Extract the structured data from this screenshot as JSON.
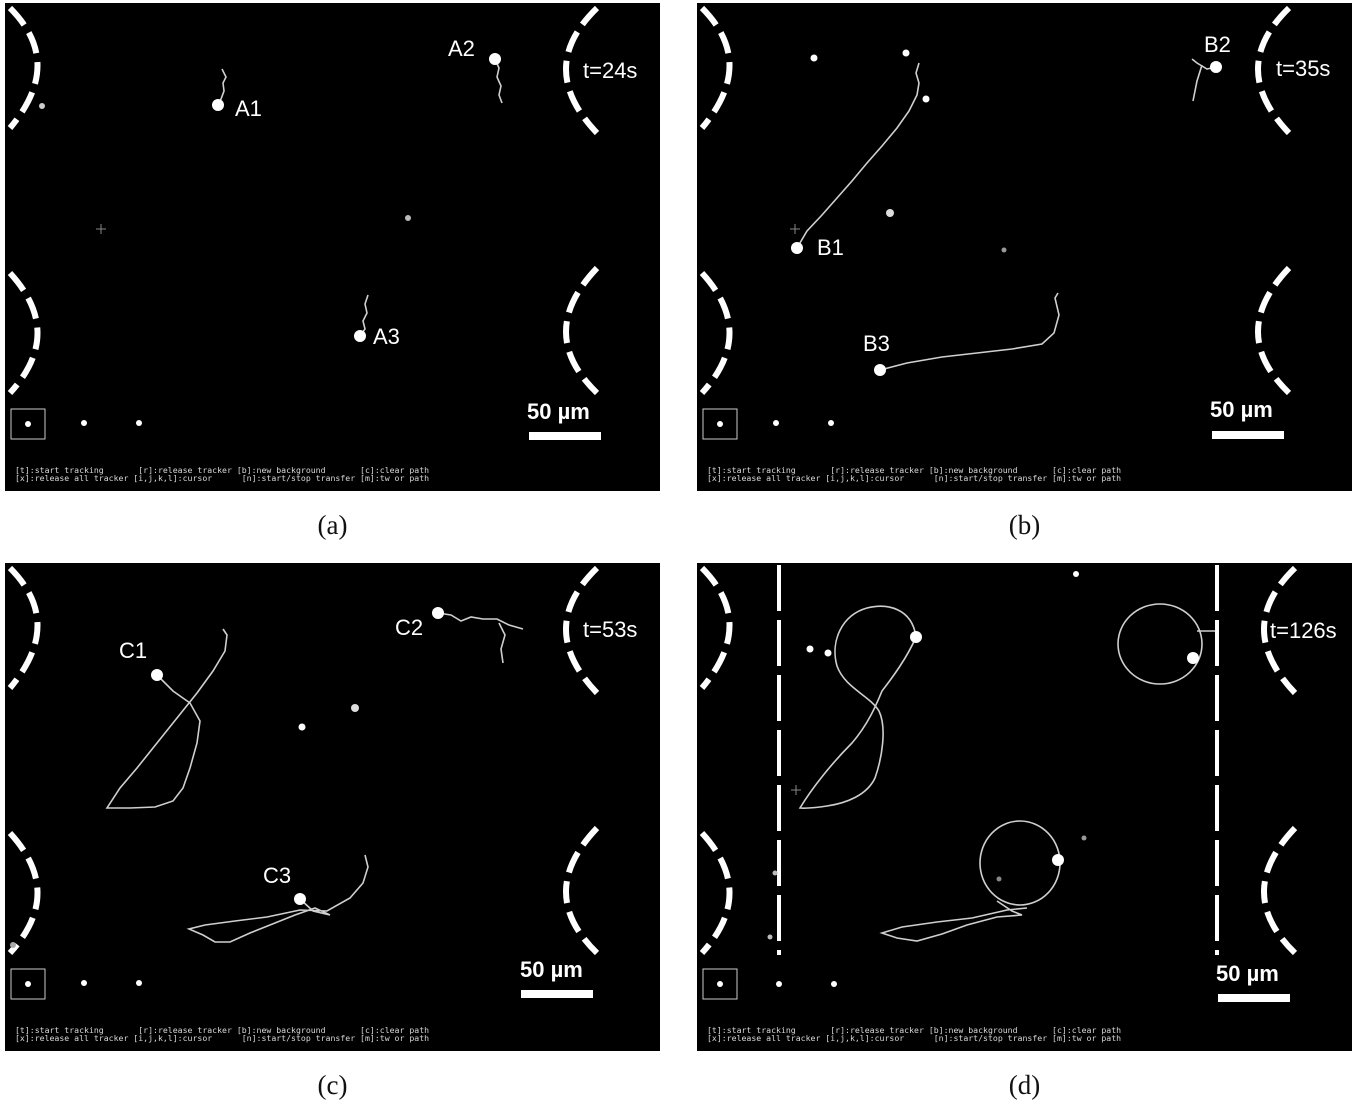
{
  "panels": [
    {
      "caption": "(a)",
      "time": "t=24s",
      "scale": "50 µm",
      "labels": [
        "A1",
        "A2",
        "A3"
      ],
      "keys": [
        "[t]:start tracking       [r]:release tracker [b]:new background       [c]:clear path",
        "[x]:release all tracker [i,j,k,l]:cursor      [n]:start/stop transfer [m]:tw or path"
      ]
    },
    {
      "caption": "(b)",
      "time": "t=35s",
      "scale": "50 µm",
      "labels": [
        "B1",
        "B2",
        "B3"
      ],
      "keys": [
        "[t]:start tracking       [r]:release tracker [b]:new background       [c]:clear path",
        "[x]:release all tracker [i,j,k,l]:cursor      [n]:start/stop transfer [m]:tw or path"
      ]
    },
    {
      "caption": "(c)",
      "time": "t=53s",
      "scale": "50 µm",
      "labels": [
        "C1",
        "C2",
        "C3"
      ],
      "keys": [
        "[t]:start tracking       [r]:release tracker [b]:new background       [c]:clear path",
        "[x]:release all tracker [i,j,k,l]:cursor      [n]:start/stop transfer [m]:tw or path"
      ]
    },
    {
      "caption": "(d)",
      "time": "t=126s",
      "scale": "50 µm",
      "labels": [],
      "keys": [
        "[t]:start tracking       [r]:release tracker [b]:new background       [c]:clear path",
        "[x]:release all tracker [i,j,k,l]:cursor      [n]:start/stop transfer [m]:tw or path"
      ]
    }
  ]
}
